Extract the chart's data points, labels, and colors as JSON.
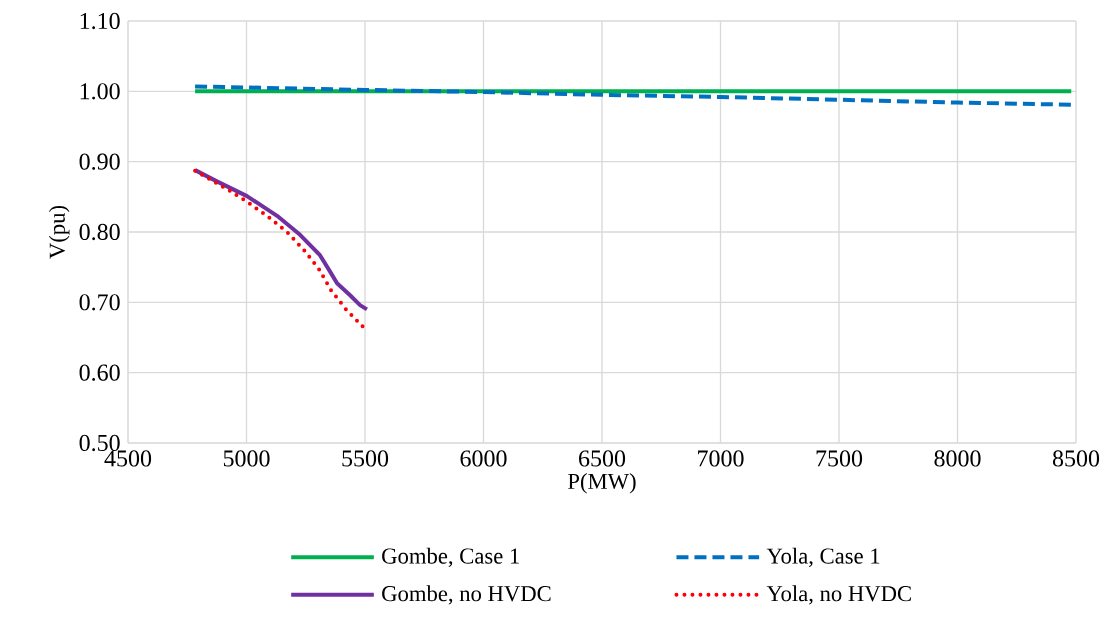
{
  "chart_data": {
    "type": "line",
    "xlabel": "P(MW)",
    "ylabel": "V(pu)",
    "xlim": [
      4500,
      8500
    ],
    "ylim": [
      0.5,
      1.1
    ],
    "xticks": [
      4500,
      5000,
      5500,
      6000,
      6500,
      7000,
      7500,
      8000,
      8500
    ],
    "yticks": [
      {
        "value": 0.5,
        "label": "0.50"
      },
      {
        "value": 0.6,
        "label": "0.60"
      },
      {
        "value": 0.7,
        "label": "0.70"
      },
      {
        "value": 0.8,
        "label": "0.80"
      },
      {
        "value": 0.9,
        "label": "0.90"
      },
      {
        "value": 1.0,
        "label": "1.00"
      },
      {
        "value": 1.1,
        "label": "1.10"
      }
    ],
    "grid": true,
    "legend": "bottom",
    "marker": "none",
    "series": [
      {
        "name": "Gombe, Case 1",
        "color": "#00b050",
        "line_style": "solid",
        "x": [
          4783,
          8480
        ],
        "values": [
          1.0,
          1.0
        ]
      },
      {
        "name": "Yola, Case 1",
        "color": "#0070c0",
        "line_style": "dashed",
        "x": [
          4783,
          5500,
          6000,
          6500,
          7000,
          7500,
          8000,
          8480
        ],
        "values": [
          1.007,
          1.002,
          0.999,
          0.995,
          0.992,
          0.988,
          0.984,
          0.981
        ]
      },
      {
        "name": "Gombe, no HVDC",
        "color": "#7030a0",
        "line_style": "solid",
        "x": [
          4783,
          4875,
          5002,
          5129,
          5226,
          5310,
          5352,
          5382,
          5437,
          5479,
          5508
        ],
        "values": [
          0.888,
          0.872,
          0.851,
          0.823,
          0.796,
          0.767,
          0.744,
          0.727,
          0.71,
          0.696,
          0.69
        ]
      },
      {
        "name": "Yola, no HVDC",
        "color": "#ff0000",
        "line_style": "dotted",
        "x": [
          4783,
          4918,
          5002,
          5086,
          5171,
          5243,
          5306,
          5357,
          5420,
          5492
        ],
        "values": [
          0.887,
          0.861,
          0.843,
          0.823,
          0.8,
          0.774,
          0.747,
          0.717,
          0.69,
          0.665
        ]
      }
    ]
  }
}
